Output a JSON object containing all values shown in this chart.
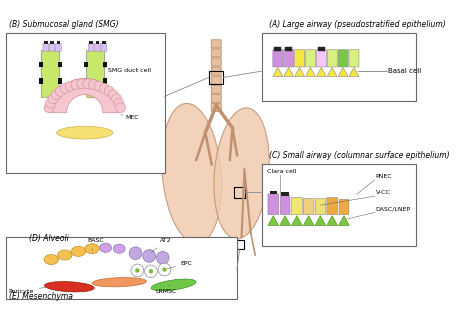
{
  "bg_color": "#ffffff",
  "label_A": "(A) Large airway (pseudostratified epithelium)",
  "label_B": "(B) Submucosal gland (SMG)",
  "label_C": "(C) Small airway (columnar surface epithelium)",
  "label_D": "(D) Alveoli",
  "label_E": "(E) Mesenchyma",
  "label_basal": "Basal cell",
  "label_smg_duct": "SMG duct cell",
  "label_mec": "MEC",
  "label_clara": "Clara cell",
  "label_pnec": "PNEC",
  "label_vcc": "V-CC",
  "label_dasc": "DASC/LNEP",
  "label_basc": "BASC",
  "label_at2": "AT2",
  "label_epc": "EPC",
  "label_lrmsc": "LRMSC",
  "label_pericyte": "Pericyte"
}
